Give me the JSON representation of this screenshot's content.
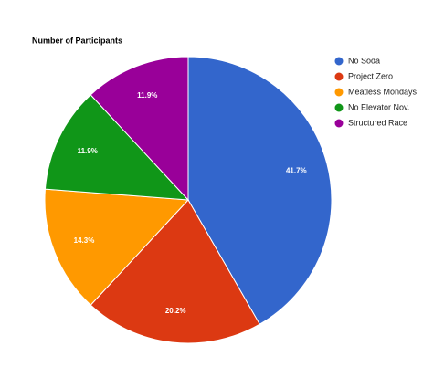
{
  "chart_data": {
    "type": "pie",
    "title": "Number of Participants",
    "categories": [
      "No Soda",
      "Project Zero",
      "Meatless Mondays",
      "No Elevator Nov.",
      "Structured Race"
    ],
    "values": [
      41.7,
      20.2,
      14.3,
      11.9,
      11.9
    ],
    "value_labels": [
      "41.7%",
      "20.2%",
      "14.3%",
      "11.9%",
      "11.9%"
    ],
    "colors": [
      "#3366cc",
      "#dc3912",
      "#ff9900",
      "#109618",
      "#990099"
    ],
    "legend": "right"
  }
}
